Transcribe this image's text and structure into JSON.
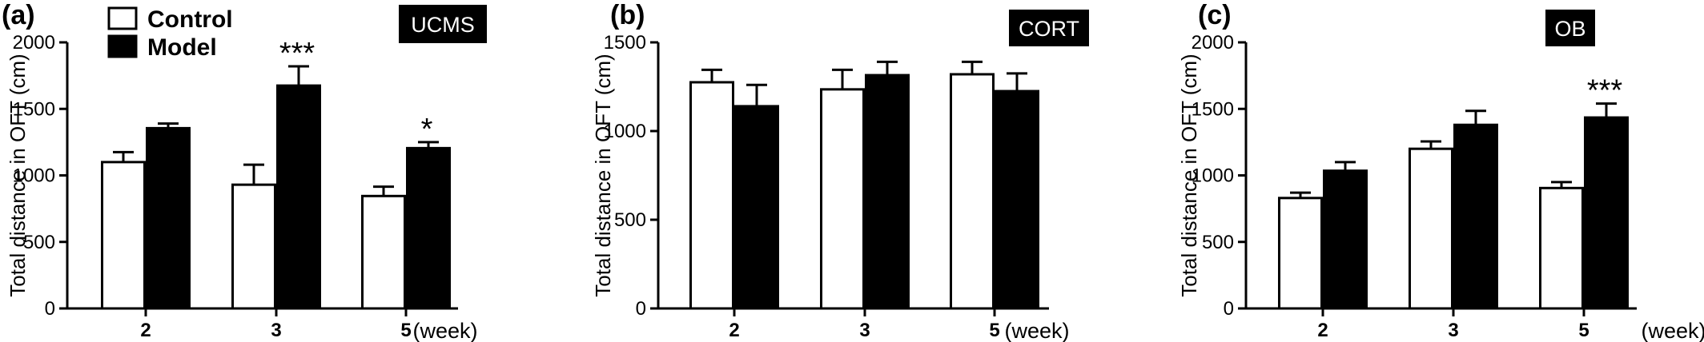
{
  "chart_data": [
    {
      "type": "bar",
      "panel": "(a)",
      "badge": "UCMS",
      "categories": [
        "2",
        "3",
        "5"
      ],
      "x_unit": "(week)",
      "ylabel": "Total distance in OFT (cm)",
      "ylim": [
        0,
        2000
      ],
      "yticks": [
        0,
        500,
        1000,
        1500,
        2000
      ],
      "legend": {
        "show": true,
        "placement": "top-left"
      },
      "series": [
        {
          "name": "Control",
          "fill": "#ffffff",
          "values": [
            1100,
            930,
            845
          ],
          "errors": [
            75,
            150,
            70
          ]
        },
        {
          "name": "Model",
          "fill": "#000000",
          "values": [
            1355,
            1675,
            1205
          ],
          "errors": [
            35,
            145,
            45
          ]
        }
      ],
      "annotations": [
        {
          "category": "3",
          "text": "***"
        },
        {
          "category": "5",
          "text": "*"
        }
      ]
    },
    {
      "type": "bar",
      "panel": "(b)",
      "badge": "CORT",
      "categories": [
        "2",
        "3",
        "5"
      ],
      "x_unit": "(week)",
      "ylabel": "Total distance in OFT (cm)",
      "ylim": [
        0,
        1500
      ],
      "yticks": [
        0,
        500,
        1000,
        1500
      ],
      "legend": {
        "show": false
      },
      "series": [
        {
          "name": "Control",
          "fill": "#ffffff",
          "values": [
            1275,
            1235,
            1320
          ],
          "errors": [
            70,
            110,
            70
          ]
        },
        {
          "name": "Model",
          "fill": "#000000",
          "values": [
            1140,
            1315,
            1225
          ],
          "errors": [
            120,
            75,
            100
          ]
        }
      ],
      "annotations": []
    },
    {
      "type": "bar",
      "panel": "(c)",
      "badge": "OB",
      "categories": [
        "2",
        "3",
        "5"
      ],
      "x_unit": "(week)",
      "ylabel": "Total distance in OFT (cm)",
      "ylim": [
        0,
        2000
      ],
      "yticks": [
        0,
        500,
        1000,
        1500,
        2000
      ],
      "legend": {
        "show": false
      },
      "series": [
        {
          "name": "Control",
          "fill": "#ffffff",
          "values": [
            830,
            1200,
            905
          ],
          "errors": [
            40,
            55,
            45
          ]
        },
        {
          "name": "Model",
          "fill": "#000000",
          "values": [
            1035,
            1380,
            1435
          ],
          "errors": [
            65,
            105,
            105
          ]
        }
      ],
      "annotations": [
        {
          "category": "5",
          "text": "***"
        }
      ]
    }
  ]
}
